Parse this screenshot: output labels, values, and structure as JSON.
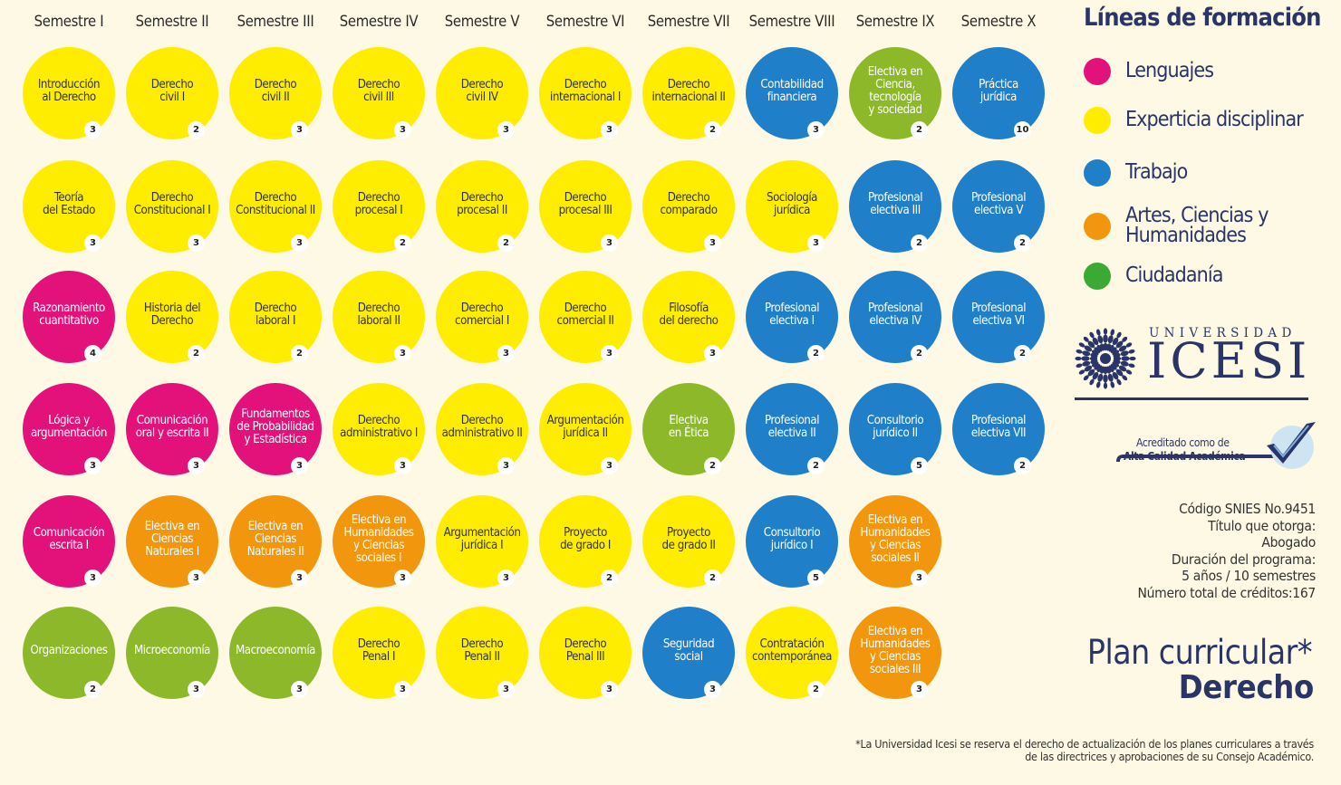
{
  "colors": {
    "magenta": "#e2127a",
    "yellow": "#ffed00",
    "blue": "#1f7fc9",
    "orange": "#f2960d",
    "green": "#8db82a",
    "legend_green": "#3aaa35",
    "navy": "#2b3467",
    "background": "#fdf9e4"
  },
  "semesters": [
    "Semestre I",
    "Semestre II",
    "Semestre III",
    "Semestre IV",
    "Semestre V",
    "Semestre VI",
    "Semestre VII",
    "Semestre VIII",
    "Semestre IX",
    "Semestre X"
  ],
  "courses": [
    [
      {
        "name": "Introducción\nal Derecho",
        "credits": "3",
        "color": "yellow"
      },
      {
        "name": "Teoría\ndel Estado",
        "credits": "3",
        "color": "yellow"
      },
      {
        "name": "Razonamiento\ncuantitativo",
        "credits": "4",
        "color": "magenta"
      },
      {
        "name": "Lógica y\nargumentación",
        "credits": "3",
        "color": "magenta"
      },
      {
        "name": "Comunicación\nescrita I",
        "credits": "3",
        "color": "magenta"
      },
      {
        "name": "Organizaciones",
        "credits": "2",
        "color": "green"
      }
    ],
    [
      {
        "name": "Derecho\ncivil I",
        "credits": "2",
        "color": "yellow"
      },
      {
        "name": "Derecho\nConstitucional I",
        "credits": "3",
        "color": "yellow"
      },
      {
        "name": "Historia del\nDerecho",
        "credits": "2",
        "color": "yellow"
      },
      {
        "name": "Comunicación\noral y escrita II",
        "credits": "3",
        "color": "magenta"
      },
      {
        "name": "Electiva en\nCiencias\nNaturales I",
        "credits": "3",
        "color": "orange"
      },
      {
        "name": "Microeconomía",
        "credits": "3",
        "color": "green"
      }
    ],
    [
      {
        "name": "Derecho\ncivil II",
        "credits": "3",
        "color": "yellow"
      },
      {
        "name": "Derecho\nConstitucional II",
        "credits": "3",
        "color": "yellow"
      },
      {
        "name": "Derecho\nlaboral I",
        "credits": "2",
        "color": "yellow"
      },
      {
        "name": "Fundamentos\nde Probabilidad\ny Estadística",
        "credits": "3",
        "color": "magenta"
      },
      {
        "name": "Electiva en\nCiencias\nNaturales II",
        "credits": "3",
        "color": "orange"
      },
      {
        "name": "Macroeconomía",
        "credits": "3",
        "color": "green"
      }
    ],
    [
      {
        "name": "Derecho\ncivil III",
        "credits": "3",
        "color": "yellow"
      },
      {
        "name": "Derecho\nprocesal I",
        "credits": "2",
        "color": "yellow"
      },
      {
        "name": "Derecho\nlaboral II",
        "credits": "3",
        "color": "yellow"
      },
      {
        "name": "Derecho\nadministrativo I",
        "credits": "3",
        "color": "yellow"
      },
      {
        "name": "Electiva en\nHumanidades\ny Ciencias\nsociales I",
        "credits": "3",
        "color": "orange"
      },
      {
        "name": "Derecho\nPenal I",
        "credits": "3",
        "color": "yellow"
      }
    ],
    [
      {
        "name": "Derecho\ncivil IV",
        "credits": "3",
        "color": "yellow"
      },
      {
        "name": "Derecho\nprocesal II",
        "credits": "2",
        "color": "yellow"
      },
      {
        "name": "Derecho\ncomercial I",
        "credits": "3",
        "color": "yellow"
      },
      {
        "name": "Derecho\nadministrativo II",
        "credits": "3",
        "color": "yellow"
      },
      {
        "name": "Argumentación\njurídica I",
        "credits": "3",
        "color": "yellow"
      },
      {
        "name": "Derecho\nPenal II",
        "credits": "3",
        "color": "yellow"
      }
    ],
    [
      {
        "name": "Derecho\ninternacional I",
        "credits": "3",
        "color": "yellow"
      },
      {
        "name": "Derecho\nprocesal III",
        "credits": "3",
        "color": "yellow"
      },
      {
        "name": "Derecho\ncomercial II",
        "credits": "3",
        "color": "yellow"
      },
      {
        "name": "Argumentación\njurídica II",
        "credits": "3",
        "color": "yellow"
      },
      {
        "name": "Proyecto\nde grado I",
        "credits": "2",
        "color": "yellow"
      },
      {
        "name": "Derecho\nPenal III",
        "credits": "3",
        "color": "yellow"
      }
    ],
    [
      {
        "name": "Derecho\ninternacional II",
        "credits": "2",
        "color": "yellow"
      },
      {
        "name": "Derecho\ncomparado",
        "credits": "3",
        "color": "yellow"
      },
      {
        "name": "Filosofía\ndel derecho",
        "credits": "3",
        "color": "yellow"
      },
      {
        "name": "Electiva\nen Ética",
        "credits": "2",
        "color": "green"
      },
      {
        "name": "Proyecto\nde grado II",
        "credits": "2",
        "color": "yellow"
      },
      {
        "name": "Seguridad\nsocial",
        "credits": "3",
        "color": "blue"
      }
    ],
    [
      {
        "name": "Contabilidad\nfinanciera",
        "credits": "3",
        "color": "blue"
      },
      {
        "name": "Sociología\njurídica",
        "credits": "3",
        "color": "yellow"
      },
      {
        "name": "Profesional\nelectiva I",
        "credits": "2",
        "color": "blue"
      },
      {
        "name": "Profesional\nelectiva II",
        "credits": "2",
        "color": "blue"
      },
      {
        "name": "Consultorio\njurídico I",
        "credits": "5",
        "color": "blue"
      },
      {
        "name": "Contratación\ncontemporánea",
        "credits": "2",
        "color": "yellow"
      }
    ],
    [
      {
        "name": "Electiva en\nCiencia,\ntecnología\ny sociedad",
        "credits": "2",
        "color": "green"
      },
      {
        "name": "Profesional\nelectiva III",
        "credits": "2",
        "color": "blue"
      },
      {
        "name": "Profesional\nelectiva IV",
        "credits": "2",
        "color": "blue"
      },
      {
        "name": "Consultorio\njurídico II",
        "credits": "5",
        "color": "blue"
      },
      {
        "name": "Electiva en\nHumanidades\ny Ciencias\nsociales II",
        "credits": "3",
        "color": "orange"
      },
      {
        "name": "Electiva en\nHumanidades\ny Ciencias\nsociales III",
        "credits": "3",
        "color": "orange"
      }
    ],
    [
      {
        "name": "Práctica\njurídica",
        "credits": "10",
        "color": "blue"
      },
      {
        "name": "Profesional\nelectiva V",
        "credits": "2",
        "color": "blue"
      },
      {
        "name": "Profesional\nelectiva VI",
        "credits": "2",
        "color": "blue"
      },
      {
        "name": "Profesional\nelectiva VII",
        "credits": "2",
        "color": "blue"
      }
    ]
  ],
  "legend": {
    "title": "Líneas de formación",
    "items": [
      {
        "label": "Lenguajes",
        "color": "magenta"
      },
      {
        "label": "Experticia disciplinar",
        "color": "yellow"
      },
      {
        "label": "Trabajo",
        "color": "blue"
      },
      {
        "label": "Artes, Ciencias y\nHumanidades",
        "color": "orange"
      },
      {
        "label": "Ciudadanía",
        "color": "legend_green"
      }
    ]
  },
  "university": {
    "subtitle": "UNIVERSIDAD",
    "name": "ICESI"
  },
  "accreditation": {
    "line1": "Acreditado como de",
    "line2": "Alta Calidad Académica"
  },
  "info": [
    "Código SNIES No.9451",
    "Título que otorga:",
    "Abogado",
    "Duración del programa:",
    "5 años / 10 semestres",
    "Número total de créditos:167"
  ],
  "plan": {
    "title": "Plan curricular*",
    "program": "Derecho"
  },
  "footnote": {
    "line1": "*La Universidad Icesi se reserva el derecho de actualización de los planes curriculares a través",
    "line2": "de las directrices y aprobaciones de su Consejo Académico."
  }
}
